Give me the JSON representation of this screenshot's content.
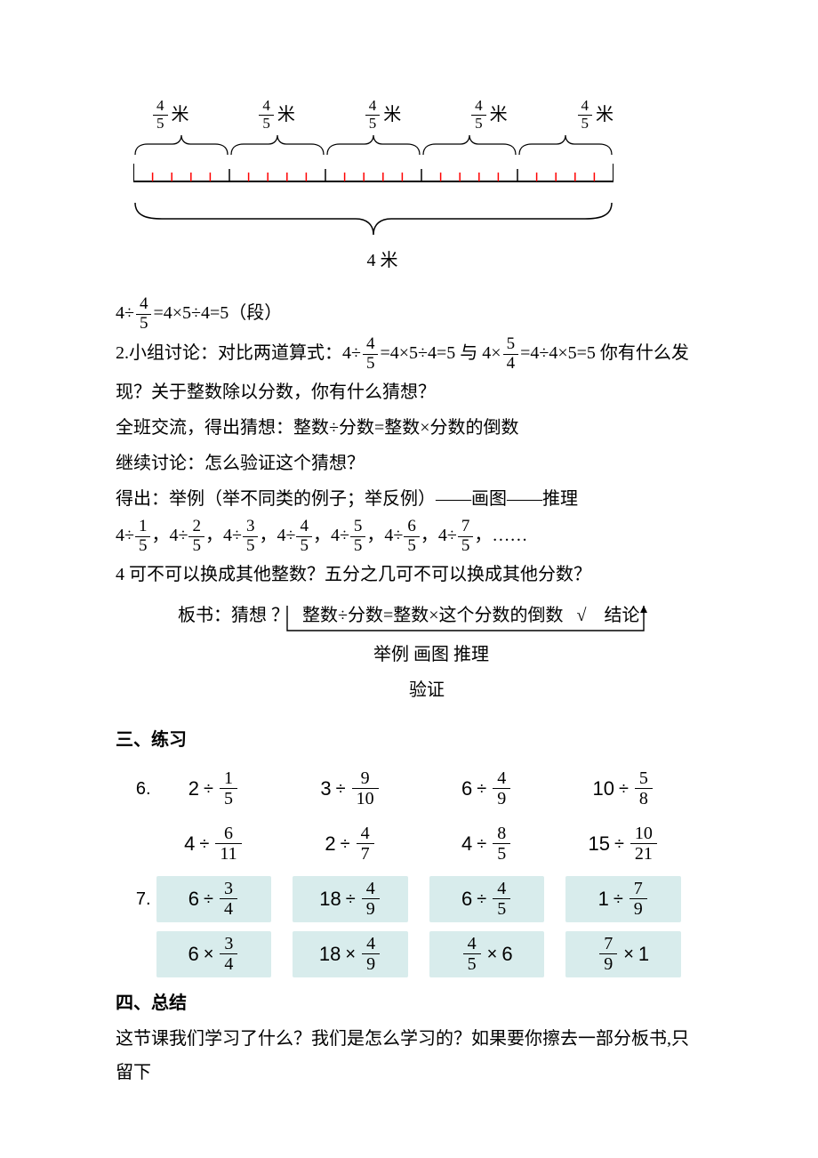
{
  "diagram": {
    "seg_frac_num": "4",
    "seg_frac_den": "5",
    "unit": "米",
    "total_label": "4 米",
    "segments": 5,
    "minor_per_seg": 5,
    "major_per_seg": 2,
    "tick_color_minor": "#ff0000",
    "tick_color_major": "#000000"
  },
  "lines": {
    "eq1_a": "4÷",
    "eq1_b": "=4×5÷4=5（段）",
    "q2a": "2.小组讨论：对比两道算式：4÷",
    "q2b": "=4×5÷4=5 与 4×",
    "q2c": "=4÷4×5=5 你有什么发",
    "q2d": "现？关于整数除以分数，你有什么猜想？",
    "l3": "全班交流，得出猜想：整数÷分数=整数×分数的倒数",
    "l4": "继续讨论：怎么验证这个猜想？",
    "l5": "得出：举例（举不同类的例子；举反例）——画图——推理",
    "seq_prefix": "4÷",
    "seq_tail": "，……",
    "l7": "4 可不可以换成其他整数？五分之几可不可以换成其他分数？",
    "l8a": "板书：猜想 ？",
    "l8b": "整数÷分数=整数×这个分数的倒数",
    "l8c": "√",
    "l8d": "结论",
    "l9": "举例 画图 推理",
    "l10": "验证"
  },
  "seq_fracs": [
    {
      "n": "1",
      "d": "5"
    },
    {
      "n": "2",
      "d": "5"
    },
    {
      "n": "3",
      "d": "5"
    },
    {
      "n": "4",
      "d": "5"
    },
    {
      "n": "5",
      "d": "5"
    },
    {
      "n": "6",
      "d": "5"
    },
    {
      "n": "7",
      "d": "5"
    }
  ],
  "frac54": {
    "n": "5",
    "d": "4"
  },
  "frac45": {
    "n": "4",
    "d": "5"
  },
  "ex_heading": "三、练习",
  "ex6": [
    [
      {
        "type": "idf",
        "a": "2",
        "n": "1",
        "d": "5",
        "box": false
      },
      {
        "type": "idf",
        "a": "3",
        "n": "9",
        "d": "10",
        "box": false
      },
      {
        "type": "idf",
        "a": "6",
        "n": "4",
        "d": "9",
        "box": false
      },
      {
        "type": "idf",
        "a": "10",
        "n": "5",
        "d": "8",
        "box": false
      }
    ],
    [
      {
        "type": "idf",
        "a": "4",
        "n": "6",
        "d": "11",
        "box": false
      },
      {
        "type": "idf",
        "a": "2",
        "n": "4",
        "d": "7",
        "box": false
      },
      {
        "type": "idf",
        "a": "4",
        "n": "8",
        "d": "5",
        "box": false
      },
      {
        "type": "idf",
        "a": "15",
        "n": "10",
        "d": "21",
        "box": false
      }
    ]
  ],
  "ex7": [
    [
      {
        "type": "idf",
        "a": "6",
        "n": "3",
        "d": "4",
        "box": true
      },
      {
        "type": "idf",
        "a": "18",
        "n": "4",
        "d": "9",
        "box": true
      },
      {
        "type": "idf",
        "a": "6",
        "n": "4",
        "d": "5",
        "box": true
      },
      {
        "type": "idf",
        "a": "1",
        "n": "7",
        "d": "9",
        "box": true
      }
    ],
    [
      {
        "type": "imf",
        "a": "6",
        "n": "3",
        "d": "4",
        "box": true
      },
      {
        "type": "imf",
        "a": "18",
        "n": "4",
        "d": "9",
        "box": true
      },
      {
        "type": "fmi",
        "a": "6",
        "n": "4",
        "d": "5",
        "box": true
      },
      {
        "type": "fmi",
        "a": "1",
        "n": "7",
        "d": "9",
        "box": true
      }
    ]
  ],
  "ex6_label": "6.",
  "ex7_label": "7.",
  "summary_heading": "四、总结",
  "summary_text": "这节课我们学习了什么？我们是怎么学习的？如果要你擦去一部分板书,只留下"
}
